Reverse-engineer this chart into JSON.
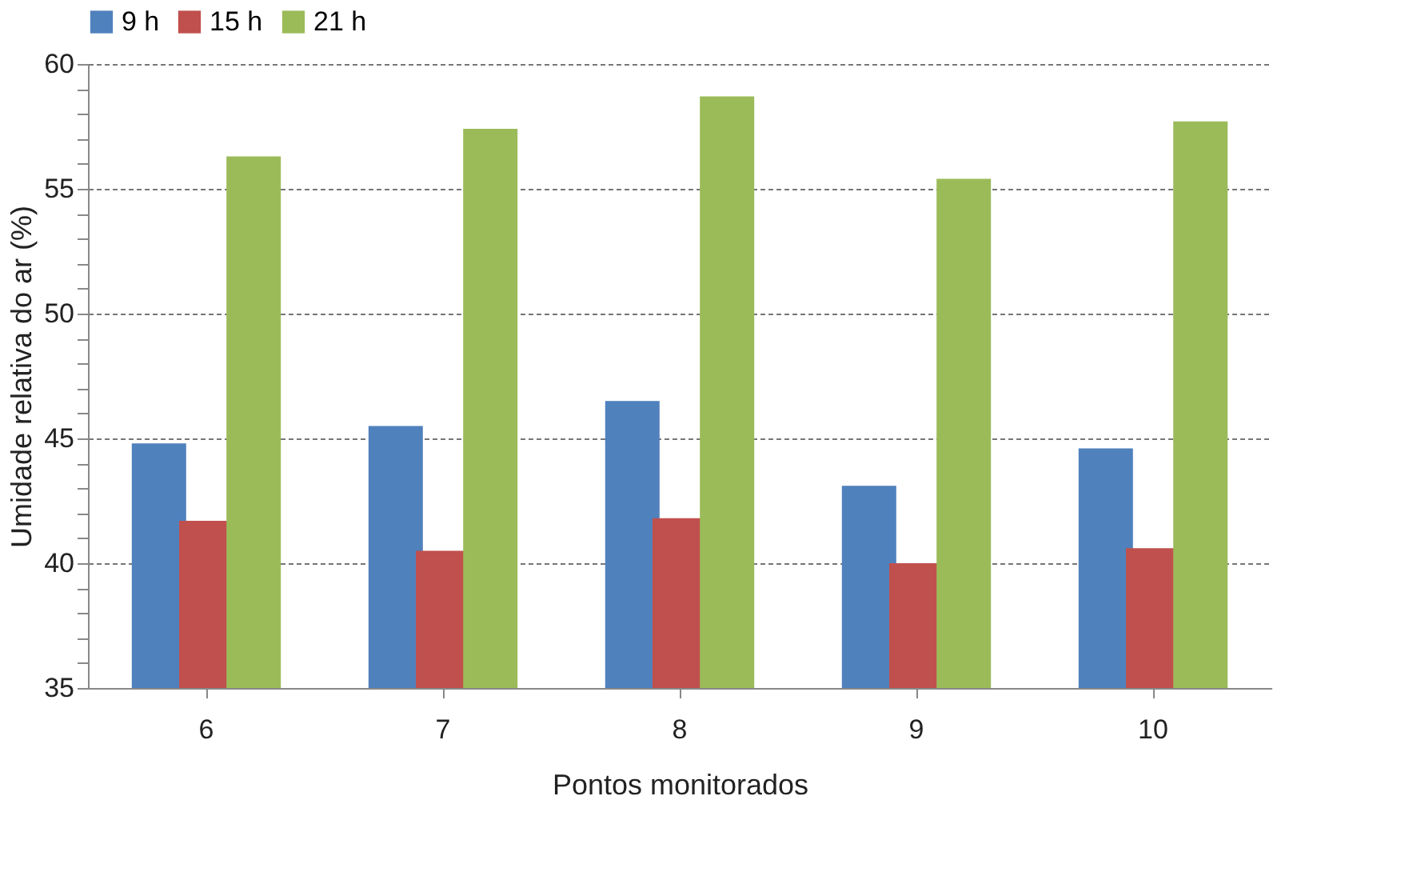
{
  "chart_data": {
    "type": "bar",
    "xlabel": "Pontos monitorados",
    "ylabel": "Umidade relativa do ar (%)",
    "categories": [
      "6",
      "7",
      "8",
      "9",
      "10"
    ],
    "series": [
      {
        "name": "9 h",
        "color": "#4f81bd",
        "values": [
          44.8,
          45.5,
          46.5,
          43.1,
          44.6
        ]
      },
      {
        "name": "15 h",
        "color": "#c0504d",
        "values": [
          41.7,
          40.5,
          41.8,
          40.0,
          40.6
        ]
      },
      {
        "name": "21 h",
        "color": "#9bbb59",
        "values": [
          56.3,
          57.4,
          58.7,
          55.4,
          57.7
        ]
      }
    ],
    "ylim": [
      35,
      60
    ],
    "yticks": [
      35,
      {
        "value": 36,
        "label": null
      },
      {
        "value": 37,
        "label": null
      },
      {
        "value": 38,
        "label": null
      },
      {
        "value": 39,
        "label": null
      },
      40,
      {
        "value": 41,
        "label": null
      },
      {
        "value": 42,
        "label": null
      },
      {
        "value": 43,
        "label": null
      },
      {
        "value": 44,
        "label": null
      },
      45,
      {
        "value": 46,
        "label": null
      },
      {
        "value": 47,
        "label": null
      },
      {
        "value": 48,
        "label": null
      },
      {
        "value": 49,
        "label": null
      },
      50,
      {
        "value": 51,
        "label": null
      },
      {
        "value": 52,
        "label": null
      },
      {
        "value": 53,
        "label": null
      },
      {
        "value": 54,
        "label": null
      },
      55,
      {
        "value": 56,
        "label": null
      },
      {
        "value": 57,
        "label": null
      },
      {
        "value": 58,
        "label": null
      },
      {
        "value": 59,
        "label": null
      },
      60
    ],
    "grid": "y",
    "legend": "top"
  }
}
